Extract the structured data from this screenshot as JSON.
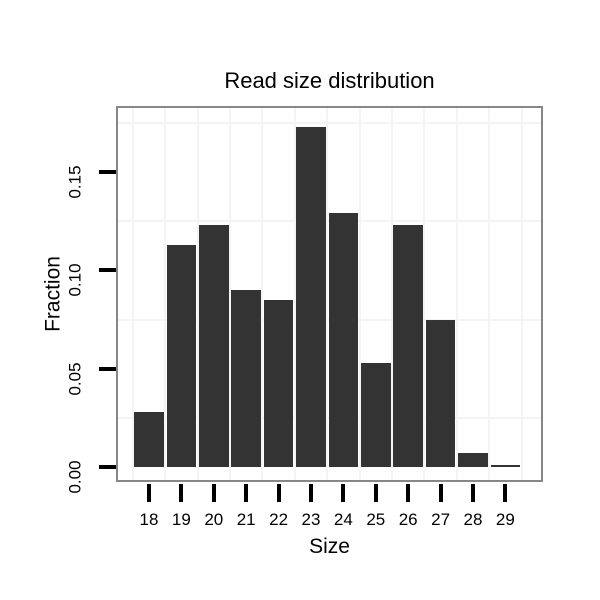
{
  "chart_data": {
    "type": "bar",
    "title": "Read size distribution",
    "xlabel": "Size",
    "ylabel": "Fraction",
    "categories": [
      "18",
      "19",
      "20",
      "21",
      "22",
      "23",
      "24",
      "25",
      "26",
      "27",
      "28",
      "29"
    ],
    "values": [
      0.028,
      0.113,
      0.123,
      0.09,
      0.085,
      0.173,
      0.129,
      0.053,
      0.123,
      0.075,
      0.007,
      0.001
    ],
    "ylim": [
      0,
      0.183
    ],
    "y_ticks": [
      0,
      0.05,
      0.1,
      0.15
    ],
    "y_tick_labels": [
      "0.00",
      "0.05",
      "0.10",
      "0.15"
    ],
    "y_minor_gridlines": [
      0.025,
      0.075,
      0.125,
      0.175
    ],
    "grid": "minor-only",
    "legend": "none",
    "colors": {
      "bar_fill": "#333333",
      "panel_border": "#878787",
      "gridline": "#f4f4f4",
      "tick": "#000000",
      "text": "#000000",
      "panel_background": "#ffffff"
    }
  }
}
